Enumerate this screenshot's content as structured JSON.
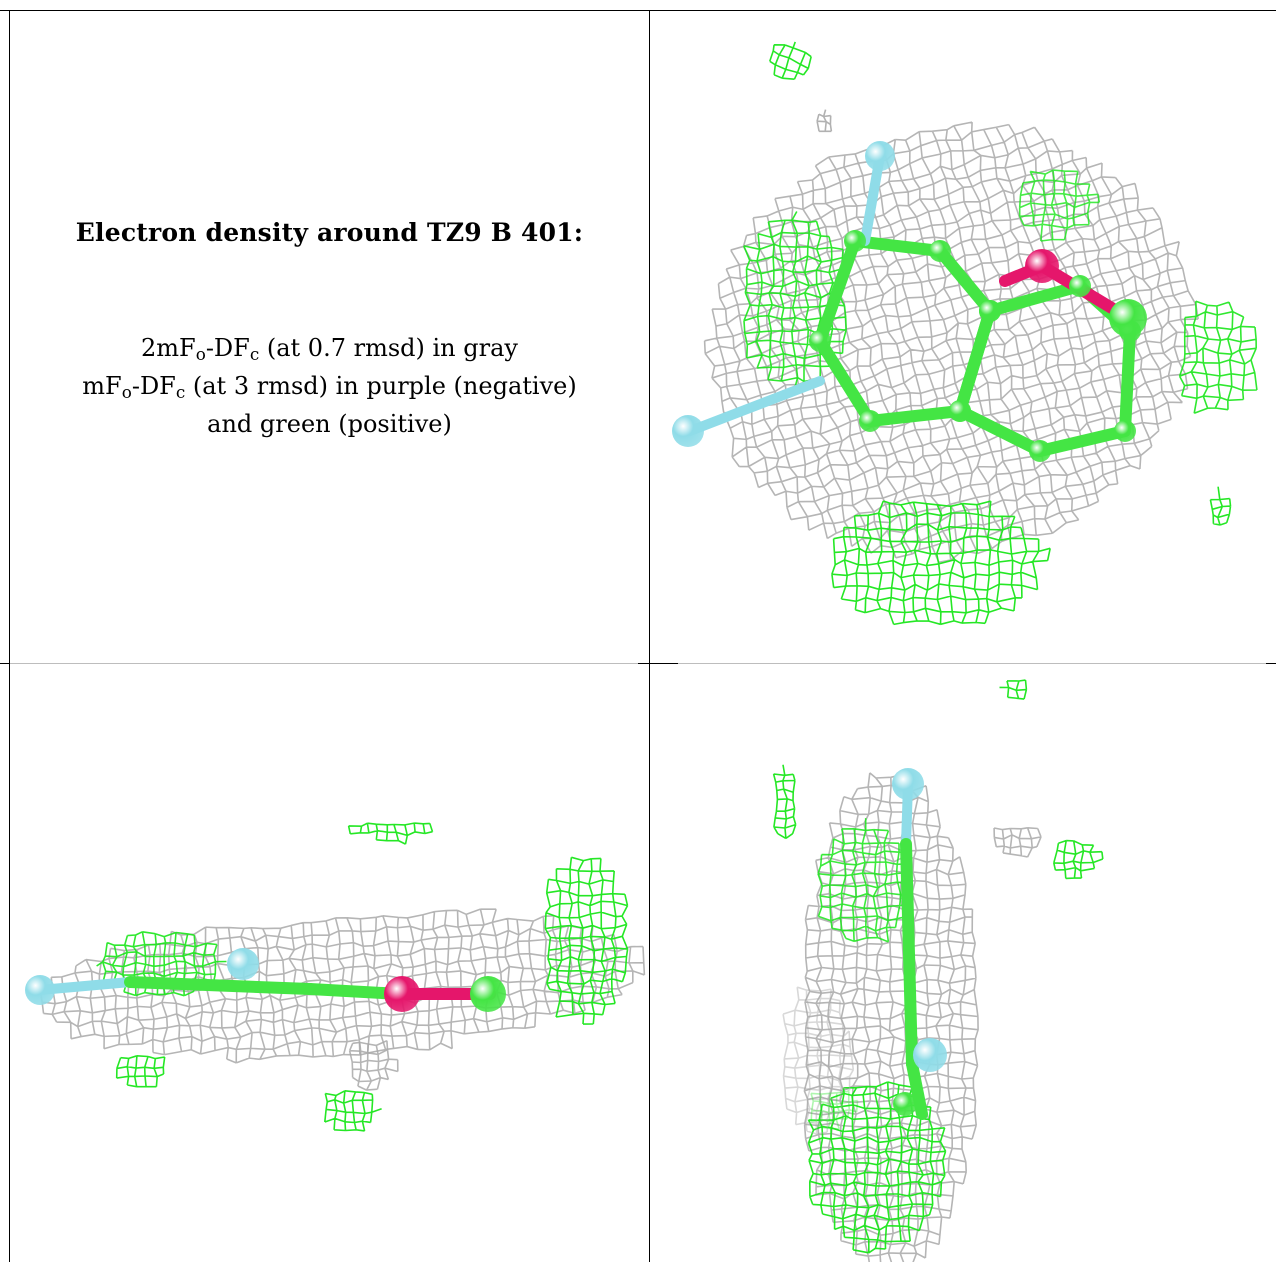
{
  "caption": {
    "title": "Electron density around TZ9 B 401:",
    "line1": {
      "a": "2mF",
      "a_sub": "o",
      "b": "-DF",
      "b_sub": "c",
      "c": " (at 0.7 rmsd) in gray"
    },
    "line2": {
      "a": "mF",
      "a_sub": "o",
      "b": "-DF",
      "b_sub": "c",
      "c": " (at 3 rmsd) in purple (negative)"
    },
    "line3": "and green (positive)"
  },
  "colors": {
    "mesh_gray": "#a8a8a8",
    "mesh_green": "#19e619",
    "carbon": "#44e544",
    "oxygen": "#e5166b",
    "halogen": "#8fdce8",
    "border": "#000000"
  },
  "panels": [
    {
      "view": "top-down"
    },
    {
      "view": "side"
    },
    {
      "view": "end-on"
    }
  ]
}
